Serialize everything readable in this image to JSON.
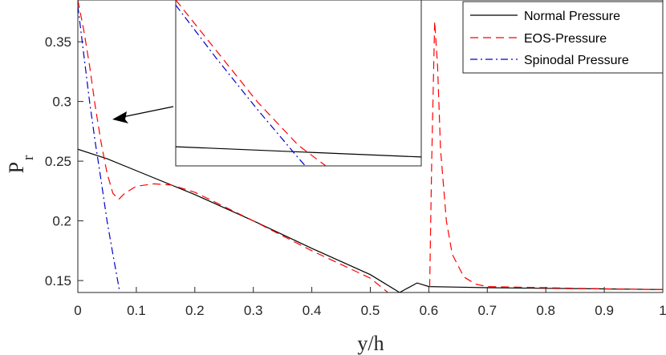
{
  "chart_data": {
    "type": "line",
    "title": "",
    "xlabel": "y/h",
    "ylabel_main": "P",
    "ylabel_sub": "r",
    "xlim": [
      0,
      1
    ],
    "ylim": [
      0.14,
      0.385
    ],
    "xticks": [
      0,
      0.1,
      0.2,
      0.3,
      0.4,
      0.5,
      0.6,
      0.7,
      0.8,
      0.9,
      1
    ],
    "xtick_labels": [
      "0",
      "0.1",
      "0.2",
      "0.3",
      "0.4",
      "0.5",
      "0.6",
      "0.7",
      "0.8",
      "0.9",
      "1"
    ],
    "yticks": [
      0.15,
      0.2,
      0.25,
      0.3,
      0.35
    ],
    "ytick_labels": [
      "0.15",
      "0.2",
      "0.25",
      "0.3",
      "0.35"
    ],
    "grid": false,
    "legend_position": "top-right",
    "series": [
      {
        "name": "Normal Pressure",
        "color": "#000000",
        "dash": "solid",
        "x": [
          0,
          0.05,
          0.1,
          0.2,
          0.3,
          0.4,
          0.5,
          0.55,
          0.58,
          0.6,
          0.65,
          0.7,
          0.8,
          0.9,
          1.0
        ],
        "y": [
          0.26,
          0.252,
          0.242,
          0.222,
          0.2,
          0.177,
          0.155,
          0.14,
          0.148,
          0.145,
          0.1445,
          0.144,
          0.1435,
          0.143,
          0.1425
        ]
      },
      {
        "name": "EOS-Pressure",
        "color": "#ff0000",
        "dash": "10,6",
        "x": [
          0,
          0.01,
          0.02,
          0.03,
          0.04,
          0.05,
          0.06,
          0.07,
          0.08,
          0.1,
          0.13,
          0.16,
          0.2,
          0.3,
          0.4,
          0.5,
          0.53,
          0.54,
          0.6,
          0.605,
          0.61,
          0.615,
          0.62,
          0.63,
          0.64,
          0.66,
          0.68,
          0.7,
          0.8,
          0.9,
          1.0
        ],
        "y": [
          0.385,
          0.36,
          0.33,
          0.295,
          0.265,
          0.24,
          0.223,
          0.218,
          0.223,
          0.229,
          0.231,
          0.23,
          0.224,
          0.2,
          0.175,
          0.152,
          0.14,
          0.1,
          0.1,
          0.25,
          0.367,
          0.33,
          0.26,
          0.2,
          0.172,
          0.153,
          0.147,
          0.145,
          0.144,
          0.143,
          0.1425
        ]
      },
      {
        "name": "Spinodal Pressure",
        "color": "#0000cc",
        "dash": "9,4,2,4",
        "x": [
          0,
          0.01,
          0.02,
          0.03,
          0.04,
          0.05,
          0.06,
          0.07,
          0.075
        ],
        "y": [
          0.38,
          0.34,
          0.3,
          0.265,
          0.233,
          0.2,
          0.172,
          0.145,
          0.13
        ]
      }
    ],
    "inset": {
      "x": [
        0.025,
        0.055
      ],
      "y": [
        0.25,
        0.315
      ],
      "series": [
        {
          "name": "Normal Pressure",
          "color": "#000000",
          "dash": "solid",
          "x": [
            0.025,
            0.055
          ],
          "y": [
            0.2575,
            0.2535
          ]
        },
        {
          "name": "EOS-Pressure",
          "color": "#ff0000",
          "dash": "10,6",
          "x": [
            0.025,
            0.03,
            0.035,
            0.04,
            0.045,
            0.05,
            0.054
          ],
          "y": [
            0.315,
            0.295,
            0.275,
            0.258,
            0.246,
            0.239,
            0.238
          ]
        },
        {
          "name": "Spinodal Pressure",
          "color": "#0000cc",
          "dash": "9,4,2,4",
          "x": [
            0.025,
            0.03,
            0.035,
            0.04,
            0.045
          ],
          "y": [
            0.313,
            0.292,
            0.272,
            0.253,
            0.235
          ]
        }
      ]
    }
  }
}
